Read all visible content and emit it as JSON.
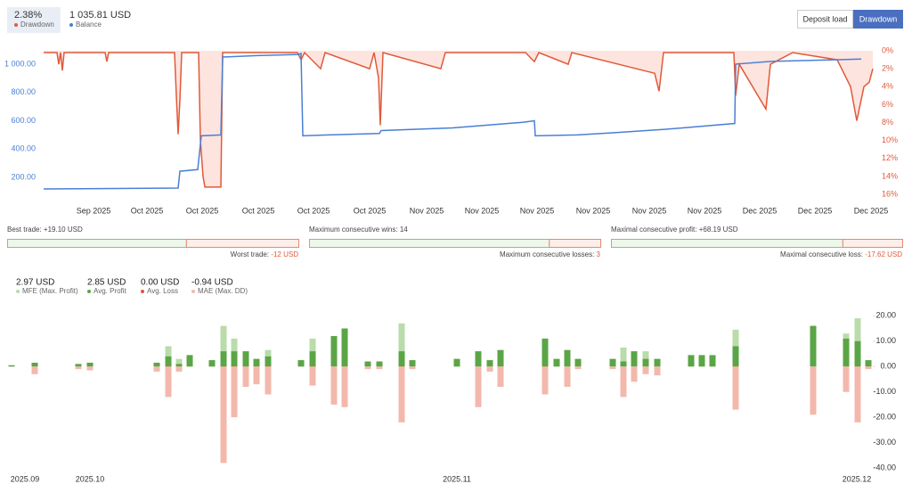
{
  "header": {
    "drawdown_value": "2.38%",
    "drawdown_label": "Drawdown",
    "balance_value": "1 035.81 USD",
    "balance_label": "Balance"
  },
  "buttons": [
    "Deposit load",
    "Drawdown"
  ],
  "stats": [
    {
      "left_text": "Best trade:",
      "left_value": 19.1,
      "left_value_label": "+19.10 USD",
      "right_text": "Worst trade:",
      "right_value": -12,
      "right_value_label": "-12 USD"
    },
    {
      "left_text": "Maximum consecutive wins:",
      "left_value": 14,
      "right_text": "Maximum consecutive losses:",
      "right_value": 3
    },
    {
      "left_text": "Maximal consecutive profit:",
      "left_value": 68.19,
      "left_value_label": "+68.19 USD",
      "right_text": "Maximal consecutive loss:",
      "right_value": -17.62,
      "right_value_label": "-17.62 USD"
    }
  ],
  "chart_data": [
    {
      "type": "line",
      "xlim": [
        0,
        932
      ],
      "xticks": [
        {
          "value": 57,
          "label": "Sep 2025"
        },
        {
          "value": 117,
          "label": "Oct 2025"
        },
        {
          "value": 179,
          "label": "Oct 2025"
        },
        {
          "value": 242,
          "label": "Oct 2025"
        },
        {
          "value": 304,
          "label": "Oct 2025"
        },
        {
          "value": 367,
          "label": "Oct 2025"
        },
        {
          "value": 431,
          "label": "Nov 2025"
        },
        {
          "value": 493,
          "label": "Nov 2025"
        },
        {
          "value": 555,
          "label": "Nov 2025"
        },
        {
          "value": 618,
          "label": "Nov 2025"
        },
        {
          "value": 681,
          "label": "Nov 2025"
        },
        {
          "value": 743,
          "label": "Nov 2025"
        },
        {
          "value": 805,
          "label": "Dec 2025"
        },
        {
          "value": 867,
          "label": "Dec 2025"
        },
        {
          "value": 930,
          "label": "Dec 2025"
        }
      ],
      "ylim": [
        81,
        1094
      ],
      "yticks": [
        {
          "value": 200,
          "label": "200.00"
        },
        {
          "value": 400,
          "label": "400.00"
        },
        {
          "value": 600,
          "label": "600.00"
        },
        {
          "value": 800,
          "label": "800.00"
        },
        {
          "value": 1000,
          "label": "1 000.00"
        }
      ],
      "y2lim": [
        16,
        0
      ],
      "y2ticks": [
        {
          "value": 0,
          "label": "0%"
        },
        {
          "value": 2,
          "label": "2%"
        },
        {
          "value": 4,
          "label": "4%"
        },
        {
          "value": 6,
          "label": "6%"
        },
        {
          "value": 8,
          "label": "8%"
        },
        {
          "value": 10,
          "label": "10%"
        },
        {
          "value": 12,
          "label": "12%"
        },
        {
          "value": 14,
          "label": "14%"
        },
        {
          "value": 16,
          "label": "16%"
        }
      ],
      "series": [
        {
          "name": "Drawdown",
          "axis": "y2",
          "color": "#e05a3a",
          "area_color": "#fde4df",
          "x": [
            1,
            16,
            18,
            20,
            22,
            24,
            70,
            72,
            74,
            148,
            150,
            152,
            154,
            156,
            175,
            177,
            180,
            182,
            200,
            202,
            286,
            290,
            294,
            312,
            317,
            367,
            372,
            377,
            379,
            382,
            447,
            452,
            542,
            552,
            557,
            590,
            594,
            687,
            692,
            697,
            742,
            776,
            778,
            782,
            812,
            817,
            842,
            892,
            902,
            907,
            914,
            922,
            928,
            932
          ],
          "values": [
            0.2,
            0.2,
            1.5,
            0.2,
            2.2,
            0.2,
            0.2,
            1.2,
            0.2,
            0.2,
            5,
            9.3,
            5.5,
            0.2,
            0.2,
            10,
            14,
            15.2,
            15.2,
            0.2,
            0.2,
            1,
            0.2,
            2,
            0.2,
            2,
            0.2,
            3,
            8.3,
            0.2,
            2,
            0.2,
            0.2,
            1.2,
            0.2,
            1.5,
            0.2,
            2.5,
            4.5,
            0.2,
            0.2,
            0.2,
            5,
            1.5,
            6.5,
            1.5,
            0.2,
            1,
            3,
            4,
            7.8,
            4,
            3.5,
            2
          ]
        },
        {
          "name": "Balance",
          "color": "#4a7fd4",
          "x": [
            1,
            152,
            154,
            174,
            178,
            200,
            202,
            240,
            287,
            290,
            292,
            320,
            378,
            380,
            460,
            540,
            552,
            553,
            600,
            640,
            700,
            777,
            778,
            818,
            892,
            919
          ],
          "values": [
            119,
            125,
            244,
            255,
            494,
            500,
            1050,
            1060,
            1068,
            1075,
            494,
            500,
            510,
            531,
            550,
            590,
            600,
            494,
            500,
            515,
            540,
            581,
            1000,
            1019,
            1031,
            1036
          ]
        }
      ]
    },
    {
      "type": "bar",
      "xlim": [
        0,
        972
      ],
      "xticks": [
        {
          "value": 20,
          "label": "2025.09"
        },
        {
          "value": 93,
          "label": "2025.10"
        },
        {
          "value": 505,
          "label": "2025.11"
        },
        {
          "value": 954,
          "label": "2025.12"
        }
      ],
      "ylim": [
        -41,
        21.5
      ],
      "yticks": [
        {
          "value": 20,
          "label": "20.00"
        },
        {
          "value": 10,
          "label": "10.00"
        },
        {
          "value": 0,
          "label": "0.00"
        },
        {
          "value": -10,
          "label": "-10.00"
        },
        {
          "value": -20,
          "label": "-20.00"
        },
        {
          "value": -30,
          "label": "-30.00"
        },
        {
          "value": -40,
          "label": "-40.00"
        }
      ],
      "x": [
        5,
        31,
        80,
        93,
        168,
        181,
        193,
        205,
        230,
        243,
        255,
        268,
        280,
        293,
        330,
        343,
        367,
        379,
        405,
        418,
        443,
        455,
        505,
        529,
        542,
        554,
        604,
        617,
        629,
        641,
        680,
        692,
        704,
        717,
        730,
        768,
        780,
        792,
        818,
        905,
        942,
        955,
        967
      ],
      "series": [
        {
          "name": "MFE (Max. Profit)",
          "summary": "2.97 USD",
          "color": "#b9dcaa",
          "values": [
            0.5,
            1.5,
            1,
            1.5,
            1.5,
            8,
            3,
            4.5,
            2.5,
            16,
            11,
            6,
            3,
            6.5,
            2.5,
            11,
            12,
            15,
            2,
            2,
            17,
            2.5,
            3,
            6,
            2.5,
            6.5,
            11,
            3,
            6.5,
            3,
            3,
            7.5,
            6,
            6,
            3,
            4.5,
            4.5,
            4.5,
            14.5,
            16,
            13,
            19,
            2.5
          ]
        },
        {
          "name": "Avg. Profit",
          "summary": "2.85 USD",
          "color": "#5aa545",
          "values": [
            0.5,
            1.5,
            1,
            1.5,
            1.5,
            4,
            1,
            4.5,
            2.5,
            6,
            6,
            6,
            3,
            4,
            2.5,
            6,
            12,
            15,
            2,
            2,
            6,
            2.5,
            3,
            6,
            2.5,
            6.5,
            11,
            3,
            6.5,
            3,
            3,
            2,
            6,
            3,
            3,
            4.5,
            4.5,
            4.5,
            8,
            16,
            11,
            10,
            2.5
          ]
        },
        {
          "name": "Avg. Loss",
          "summary": "0.00 USD",
          "color": "#e0573a",
          "values": [
            0,
            0,
            0,
            0,
            0,
            -5,
            0,
            0,
            0,
            -11,
            -4,
            -4,
            0,
            -1,
            0,
            -1,
            0,
            0,
            0,
            0,
            -8,
            0,
            0,
            0,
            0,
            0,
            -2,
            0,
            0,
            0,
            0,
            0,
            0,
            0,
            0,
            0,
            0,
            0,
            -4,
            0,
            0,
            -8,
            0
          ]
        },
        {
          "name": "MAE (Max. DD)",
          "summary": "-0.94 USD",
          "color": "#f3b8ac",
          "values": [
            0,
            -3,
            -1,
            -1.5,
            -2,
            -12,
            -2,
            0,
            0,
            -38,
            -20,
            -8,
            -7,
            -11,
            0,
            -7.5,
            -15,
            -16,
            -1,
            -1,
            -22,
            -1,
            0,
            -16,
            -2,
            -8,
            -11,
            0,
            -8,
            -1,
            -1,
            -12,
            -6,
            -3,
            -3.5,
            0,
            0,
            0,
            -17,
            -19,
            -10,
            -22,
            -1
          ]
        }
      ]
    }
  ]
}
